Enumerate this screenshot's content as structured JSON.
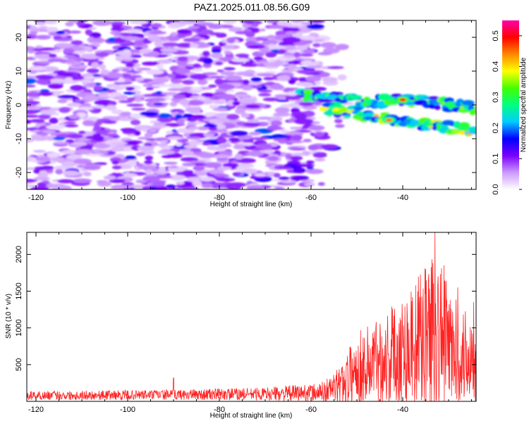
{
  "title": "PAZ1.2025.011.08.56.G09",
  "chart_data": [
    {
      "type": "heatmap",
      "xlabel": "Height of straight line (km)",
      "ylabel": "Frequency (Hz)",
      "xlim": [
        -122,
        -24
      ],
      "ylim": [
        -25,
        25
      ],
      "xticks": [
        -120,
        -100,
        -80,
        -60,
        -40
      ],
      "yticks": [
        -20,
        -10,
        0,
        10,
        20
      ],
      "colorbar": {
        "label": "Normalized spectral amplitude",
        "range": [
          0.0,
          0.55
        ],
        "ticks": [
          0.0,
          0.1,
          0.2,
          0.3,
          0.4,
          0.5
        ],
        "colors": [
          "#ffffff",
          "#cc99ff",
          "#7a00ff",
          "#0000ff",
          "#00ccff",
          "#00ff80",
          "#44ff00",
          "#ffff00",
          "#ff8800",
          "#ff0000",
          "#ff00aa"
        ]
      },
      "features": [
        {
          "name": "scattered-noise",
          "x_range": [
            -122,
            -58
          ],
          "y_range": [
            -25,
            25
          ],
          "level": 0.05
        },
        {
          "name": "upper-branch",
          "points": [
            [
              -62,
              3
            ],
            [
              -55,
              2
            ],
            [
              -48,
              1
            ],
            [
              -40,
              1.5
            ],
            [
              -35,
              1
            ],
            [
              -30,
              0
            ],
            [
              -24,
              -1
            ]
          ],
          "level": 0.25
        },
        {
          "name": "lower-branch",
          "points": [
            [
              -57,
              -1
            ],
            [
              -50,
              -2.5
            ],
            [
              -44,
              -4
            ],
            [
              -38,
              -5
            ],
            [
              -32,
              -6
            ],
            [
              -24,
              -8
            ]
          ],
          "level": 0.3
        },
        {
          "name": "peak",
          "x": -40,
          "y": 1.5,
          "level": 0.5
        },
        {
          "name": "peak",
          "x": -43,
          "y": -4.5,
          "level": 0.45
        }
      ]
    },
    {
      "type": "line",
      "xlabel": "Height of straight line (km)",
      "ylabel": "SNR (10 * v/v)",
      "xlim": [
        -122,
        -24
      ],
      "ylim": [
        0,
        2300
      ],
      "xticks": [
        -120,
        -100,
        -80,
        -60,
        -40
      ],
      "yticks": [
        500,
        1000,
        1500,
        2000
      ],
      "color": "#ff2222",
      "envelope": [
        {
          "x": -122,
          "base": 80,
          "amp": 60
        },
        {
          "x": -90,
          "base": 90,
          "amp": 70
        },
        {
          "x": -70,
          "base": 100,
          "amp": 90
        },
        {
          "x": -58,
          "base": 120,
          "amp": 130
        },
        {
          "x": -54,
          "base": 200,
          "amp": 250
        },
        {
          "x": -50,
          "base": 450,
          "amp": 500
        },
        {
          "x": -45,
          "base": 550,
          "amp": 650
        },
        {
          "x": -40,
          "base": 700,
          "amp": 800
        },
        {
          "x": -36,
          "base": 850,
          "amp": 900
        },
        {
          "x": -33,
          "base": 1000,
          "amp": 1200
        },
        {
          "x": -30,
          "base": 750,
          "amp": 800
        },
        {
          "x": -27,
          "base": 600,
          "amp": 650
        },
        {
          "x": -24,
          "base": 700,
          "amp": 700
        }
      ],
      "peaks": [
        {
          "x": -90,
          "y": 320
        },
        {
          "x": -35,
          "y": 1800
        },
        {
          "x": -33,
          "y": 2300
        },
        {
          "x": -31,
          "y": 1850
        },
        {
          "x": -28,
          "y": 1550
        },
        {
          "x": -24.5,
          "y": 1350
        }
      ]
    }
  ]
}
